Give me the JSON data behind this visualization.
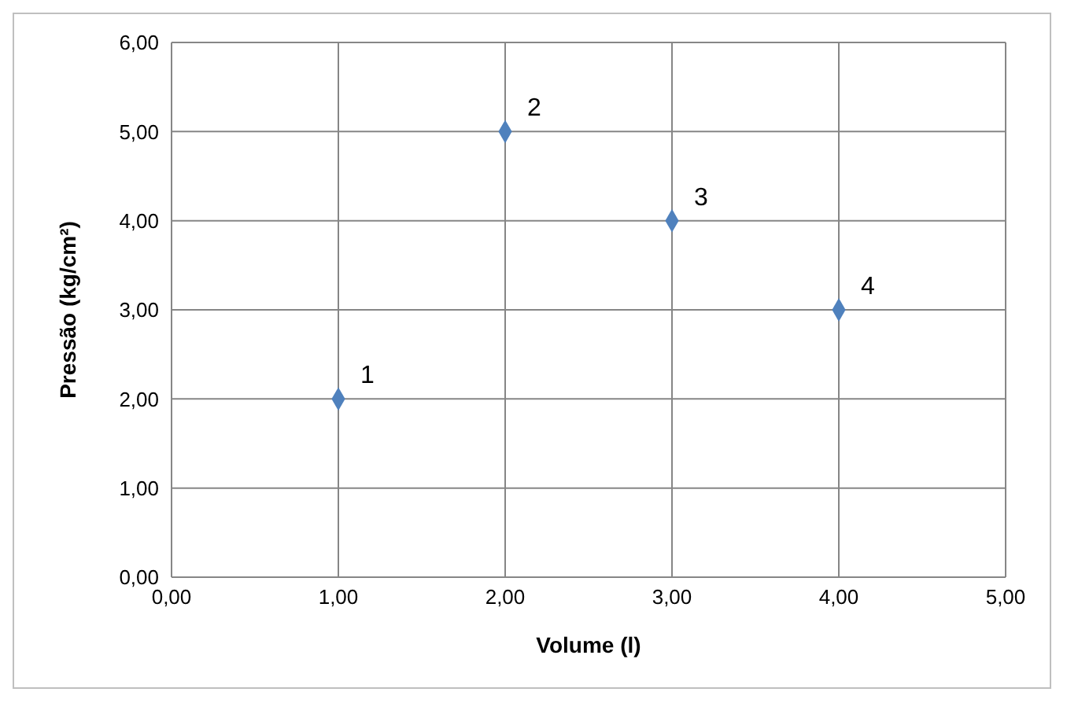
{
  "chart_data": {
    "type": "scatter",
    "xlabel": "Volume (l)",
    "ylabel": "Pressão (kg/cm²)",
    "x": [
      1,
      2,
      3,
      4
    ],
    "series": [
      {
        "color": "#4f81bd",
        "values": [
          2,
          5,
          4,
          3
        ]
      }
    ],
    "xlim": [
      0,
      5
    ],
    "xticks": [
      {
        "value": 0,
        "label": "0,00"
      },
      {
        "value": 1,
        "label": "1,00"
      },
      {
        "value": 2,
        "label": "2,00"
      },
      {
        "value": 3,
        "label": "3,00"
      },
      {
        "value": 4,
        "label": "4,00"
      },
      {
        "value": 5,
        "label": "5,00"
      }
    ],
    "ylim": [
      0,
      6
    ],
    "yticks": [
      {
        "value": 0,
        "label": "0,00"
      },
      {
        "value": 1,
        "label": "1,00"
      },
      {
        "value": 2,
        "label": "2,00"
      },
      {
        "value": 3,
        "label": "3,00"
      },
      {
        "value": 4,
        "label": "4,00"
      },
      {
        "value": 5,
        "label": "5,00"
      },
      {
        "value": 6,
        "label": "6,00"
      }
    ],
    "grid": true,
    "marker": "diamond",
    "legend": false,
    "annotations": [
      {
        "text": "1",
        "x": 1,
        "y": 2
      },
      {
        "text": "2",
        "x": 2,
        "y": 5
      },
      {
        "text": "3",
        "x": 3,
        "y": 4
      },
      {
        "text": "4",
        "x": 4,
        "y": 3
      }
    ]
  }
}
